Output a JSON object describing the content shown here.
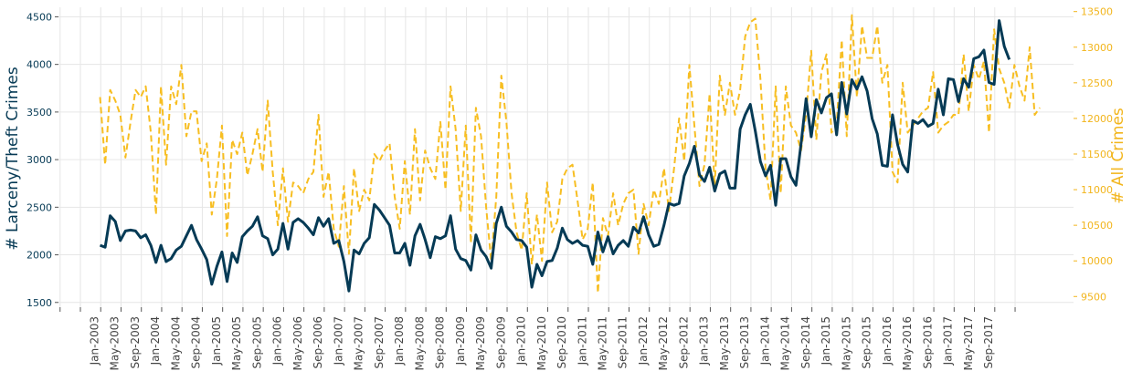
{
  "chart_data": {
    "type": "line",
    "grid": true,
    "legend": "none",
    "ylabel_left": "# Larceny/Theft Crimes",
    "ylabel_right": "# All Crimes",
    "ylim_left": [
      1450,
      4600
    ],
    "ylim_right": [
      9350,
      13560
    ],
    "yticks_left": [
      "1500",
      "2000",
      "2500",
      "3000",
      "3500",
      "4000",
      "4500"
    ],
    "yticks_right": [
      "9500",
      "10000",
      "10500",
      "11000",
      "11500",
      "12000",
      "12500",
      "13000",
      "13500"
    ],
    "x_start": "2003-01",
    "xticks": [
      "Jan-2003",
      "May-2003",
      "Sep-2003",
      "Jan-2004",
      "May-2004",
      "Sep-2004",
      "Jan-2005",
      "May-2005",
      "Sep-2005",
      "Jan-2006",
      "May-2006",
      "Sep-2006",
      "Jan-2007",
      "May-2007",
      "Sep-2007",
      "Jan-2008",
      "May-2008",
      "Sep-2008",
      "Jan-2009",
      "May-2009",
      "Sep-2009",
      "Jan-2010",
      "May-2010",
      "Sep-2010",
      "Jan-2011",
      "May-2011",
      "Sep-2011",
      "Jan-2012",
      "May-2012",
      "Sep-2012",
      "Jan-2013",
      "May-2013",
      "Sep-2013",
      "Jan-2014",
      "May-2014",
      "Sep-2014",
      "Jan-2015",
      "May-2015",
      "Sep-2015",
      "Jan-2016",
      "May-2016",
      "Sep-2016",
      "Jan-2017",
      "May-2017",
      "Sep-2017"
    ],
    "colors": {
      "larceny": "#053a55",
      "all": "#f7be22"
    },
    "series": [
      {
        "axis": "left",
        "values": [
          2100,
          2080,
          2410,
          2350,
          2150,
          2250,
          2260,
          2250,
          2180,
          2210,
          2100,
          1920,
          2100,
          1930,
          1960,
          2050,
          2090,
          2200,
          2310,
          2160,
          2060,
          1950,
          1690,
          1880,
          2030,
          1720,
          2020,
          1920,
          2190,
          2250,
          2300,
          2400,
          2200,
          2170,
          2000,
          2060,
          2330,
          2060,
          2340,
          2380,
          2340,
          2280,
          2210,
          2390,
          2300,
          2380,
          2120,
          2150,
          1930,
          1620,
          2050,
          2010,
          2120,
          2180,
          2530,
          2470,
          2390,
          2310,
          2020,
          2020,
          2120,
          1890,
          2200,
          2320,
          2160,
          1970,
          2190,
          2170,
          2200,
          2410,
          2060,
          1960,
          1940,
          1840,
          2210,
          2050,
          1980,
          1860,
          2330,
          2500,
          2300,
          2240,
          2160,
          2150,
          2080,
          1660,
          1900,
          1780,
          1930,
          1940,
          2070,
          2280,
          2160,
          2120,
          2150,
          2100,
          2090,
          1900,
          2240,
          2030,
          2190,
          2010,
          2100,
          2150,
          2090,
          2290,
          2230,
          2400,
          2210,
          2090,
          2110,
          2310,
          2540,
          2520,
          2540,
          2830,
          2960,
          3140,
          2840,
          2770,
          2920,
          2670,
          2850,
          2880,
          2700,
          2700,
          3320,
          3470,
          3580,
          3300,
          2980,
          2830,
          2940,
          2520,
          3010,
          3010,
          2820,
          2730,
          3170,
          3640,
          3240,
          3630,
          3490,
          3650,
          3690,
          3260,
          3810,
          3480,
          3840,
          3740,
          3870,
          3720,
          3430,
          3270,
          2940,
          2930,
          3470,
          3160,
          2950,
          2870,
          3410,
          3380,
          3420,
          3350,
          3380,
          3740,
          3470,
          3850,
          3840,
          3610,
          3850,
          3760,
          4060,
          4080,
          4150,
          3810,
          3790,
          4460,
          4190,
          4050
        ]
      },
      {
        "axis": "right",
        "values": [
          12300,
          11350,
          12400,
          12250,
          12050,
          11450,
          11950,
          12400,
          12300,
          12450,
          11800,
          10650,
          12450,
          11350,
          12450,
          12200,
          12750,
          11750,
          12100,
          12100,
          11400,
          11650,
          10650,
          11150,
          11900,
          10350,
          11700,
          11500,
          11800,
          11200,
          11500,
          11850,
          11250,
          12250,
          11250,
          10500,
          11300,
          10550,
          11100,
          11050,
          10950,
          11150,
          11250,
          12050,
          10900,
          11250,
          10450,
          10200,
          11050,
          10100,
          11300,
          10700,
          11000,
          10850,
          11500,
          11400,
          11550,
          11650,
          10900,
          10450,
          11400,
          10650,
          11850,
          10850,
          11550,
          11300,
          11150,
          11950,
          11000,
          12450,
          11850,
          10700,
          11900,
          10250,
          12150,
          11750,
          10750,
          10000,
          10900,
          12600,
          11950,
          10950,
          10400,
          10150,
          10950,
          9950,
          10650,
          10000,
          11100,
          10400,
          10550,
          11150,
          11300,
          11350,
          10850,
          10300,
          10450,
          11100,
          9550,
          10600,
          10350,
          10950,
          10500,
          10800,
          10950,
          11000,
          10100,
          10800,
          10500,
          11000,
          10800,
          11300,
          10700,
          11300,
          12000,
          11400,
          12750,
          11900,
          11050,
          11350,
          12350,
          11050,
          12600,
          12050,
          12500,
          12050,
          12400,
          13150,
          13350,
          13400,
          12550,
          11300,
          10850,
          12450,
          10950,
          12450,
          11900,
          11800,
          11550,
          12050,
          12950,
          11700,
          12650,
          12900,
          11800,
          11900,
          13100,
          11750,
          13450,
          12300,
          13300,
          12850,
          12850,
          13300,
          12500,
          12750,
          11250,
          11100,
          12500,
          11800,
          11900,
          12000,
          12100,
          12150,
          12650,
          11800,
          11900,
          11950,
          12050,
          12050,
          12900,
          12100,
          12750,
          12550,
          12800,
          11800,
          13250,
          12700,
          12500,
          12150,
          12750,
          12450,
          12250,
          13000,
          12050,
          12150
        ]
      }
    ]
  }
}
